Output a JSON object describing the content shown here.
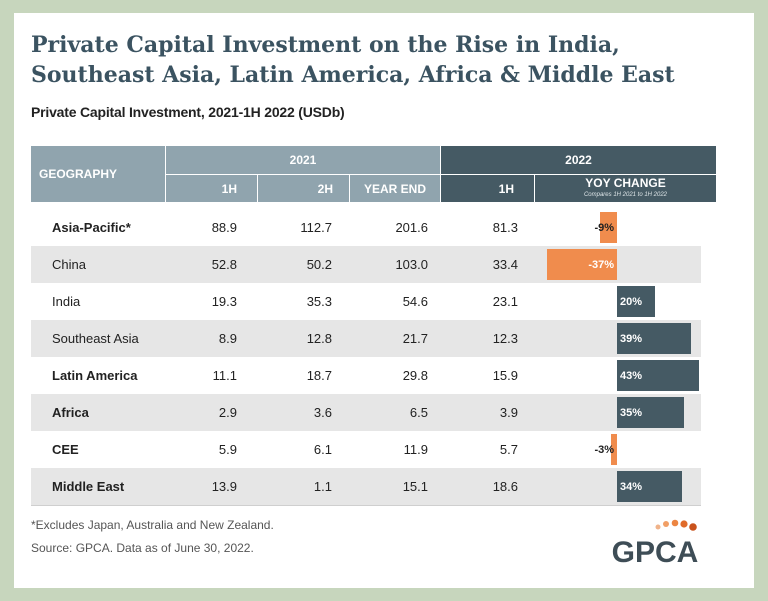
{
  "title_line1": "Private Capital Investment on the Rise in India,",
  "title_line2": "Southeast Asia, Latin America, Africa & Middle East",
  "subtitle": "Private Capital Investment, 2021-1H 2022 (USDb)",
  "header": {
    "geography": "GEOGRAPHY",
    "y2021": "2021",
    "y2022": "2022",
    "h1": "1H",
    "h2": "2H",
    "year_end": "YEAR END",
    "h1_2022": "1H",
    "yoy": "YOY CHANGE",
    "yoy_note": "Compares 1H 2021 to 1H 2022"
  },
  "colors": {
    "header_2021": "#90a4ae",
    "header_2022": "#455a64",
    "negative": "#f08c4d",
    "positive": "#455a64",
    "stripe": "#e6e6e6"
  },
  "chart_data": {
    "type": "table",
    "title": "Private Capital Investment on the Rise in India, Southeast Asia, Latin America, Africa & Middle East",
    "subtitle": "Private Capital Investment, 2021-1H 2022 (USDb)",
    "columns": [
      "GEOGRAPHY",
      "2021 1H",
      "2021 2H",
      "2021 YEAR END",
      "2022 1H",
      "YOY CHANGE"
    ],
    "rows": [
      {
        "geo": "Asia-Pacific*",
        "h1_2021": "88.9",
        "h2_2021": "112.7",
        "ye_2021": "201.6",
        "h1_2022": "81.3",
        "yoy": -9,
        "yoy_label": "-9%"
      },
      {
        "geo": "China",
        "h1_2021": "52.8",
        "h2_2021": "50.2",
        "ye_2021": "103.0",
        "h1_2022": "33.4",
        "yoy": -37,
        "yoy_label": "-37%"
      },
      {
        "geo": "India",
        "h1_2021": "19.3",
        "h2_2021": "35.3",
        "ye_2021": "54.6",
        "h1_2022": "23.1",
        "yoy": 20,
        "yoy_label": "20%"
      },
      {
        "geo": "Southeast Asia",
        "h1_2021": "8.9",
        "h2_2021": "12.8",
        "ye_2021": "21.7",
        "h1_2022": "12.3",
        "yoy": 39,
        "yoy_label": "39%"
      },
      {
        "geo": "Latin America",
        "h1_2021": "11.1",
        "h2_2021": "18.7",
        "ye_2021": "29.8",
        "h1_2022": "15.9",
        "yoy": 43,
        "yoy_label": "43%"
      },
      {
        "geo": "Africa",
        "h1_2021": "2.9",
        "h2_2021": "3.6",
        "ye_2021": "6.5",
        "h1_2022": "3.9",
        "yoy": 35,
        "yoy_label": "35%"
      },
      {
        "geo": "CEE",
        "h1_2021": "5.9",
        "h2_2021": "6.1",
        "ye_2021": "11.9",
        "h1_2022": "5.7",
        "yoy": -3,
        "yoy_label": "-3%"
      },
      {
        "geo": "Middle East",
        "h1_2021": "13.9",
        "h2_2021": "1.1",
        "ye_2021": "15.1",
        "h1_2022": "18.6",
        "yoy": 34,
        "yoy_label": "34%"
      }
    ],
    "yoy_range": [
      -40,
      45
    ]
  },
  "footnote1": "*Excludes Japan, Australia and New Zealand.",
  "footnote2": "Source: GPCA. Data as of June 30, 2022.",
  "logo_text": "GPCA"
}
